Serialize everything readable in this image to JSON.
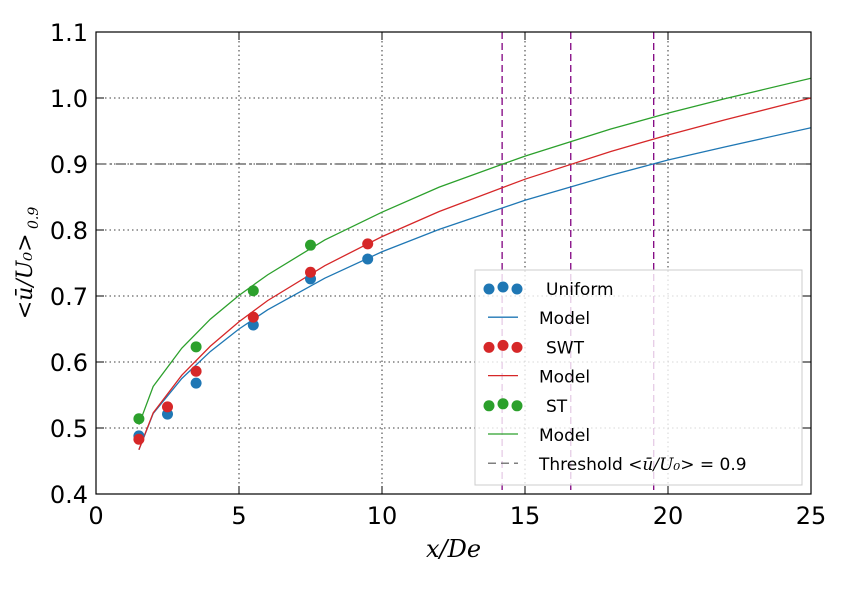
{
  "chart_data": {
    "type": "scatter",
    "title": "",
    "xlabel": "x/De",
    "ylabel": "<ū/U₀>",
    "ylabel_subscript": "0.9",
    "xlim": [
      0,
      25
    ],
    "ylim": [
      0.4,
      1.1
    ],
    "xticks": [
      "0",
      "5",
      "10",
      "15",
      "20",
      "25"
    ],
    "yticks": [
      "0.4",
      "0.5",
      "0.6",
      "0.7",
      "0.8",
      "0.9",
      "1.0",
      "1.1"
    ],
    "grid": true,
    "legend_placement": "lower-right",
    "series": [
      {
        "name": "Uniform",
        "kind": "points",
        "color": "#1f77b4",
        "x": [
          1.5,
          2.5,
          3.5,
          5.5,
          7.5,
          9.5
        ],
        "y": [
          0.488,
          0.521,
          0.568,
          0.656,
          0.726,
          0.756
        ]
      },
      {
        "name": "Model",
        "kind": "line",
        "color": "#1f77b4",
        "x": [
          1.5,
          2,
          3,
          4,
          5,
          6,
          8,
          10,
          12,
          15,
          18,
          20,
          22,
          25
        ],
        "y": [
          0.467,
          0.522,
          0.575,
          0.616,
          0.65,
          0.679,
          0.727,
          0.767,
          0.801,
          0.845,
          0.883,
          0.906,
          0.926,
          0.955
        ]
      },
      {
        "name": "SWT",
        "kind": "points",
        "color": "#d62728",
        "x": [
          1.5,
          2.5,
          3.5,
          5.5,
          7.5,
          9.5
        ],
        "y": [
          0.483,
          0.532,
          0.586,
          0.668,
          0.736,
          0.779
        ]
      },
      {
        "name": "Model",
        "kind": "line",
        "color": "#d62728",
        "x": [
          1.5,
          2,
          3,
          4,
          5,
          6,
          8,
          10,
          12,
          15,
          18,
          20,
          22,
          25
        ],
        "y": [
          0.467,
          0.523,
          0.58,
          0.624,
          0.661,
          0.693,
          0.746,
          0.79,
          0.828,
          0.877,
          0.919,
          0.944,
          0.967,
          1.0
        ]
      },
      {
        "name": "ST",
        "kind": "points",
        "color": "#2ca02c",
        "x": [
          1.5,
          3.5,
          5.5,
          7.5
        ],
        "y": [
          0.514,
          0.623,
          0.708,
          0.777
        ]
      },
      {
        "name": "Model",
        "kind": "line",
        "color": "#2ca02c",
        "x": [
          1.5,
          2,
          3,
          4,
          5,
          6,
          8,
          10,
          12,
          15,
          18,
          20,
          22,
          25
        ],
        "y": [
          0.505,
          0.563,
          0.621,
          0.665,
          0.701,
          0.732,
          0.785,
          0.827,
          0.865,
          0.912,
          0.953,
          0.977,
          0.999,
          1.03
        ]
      }
    ],
    "threshold": {
      "name": "Threshold",
      "label_math": "<ū/U₀>",
      "label_suffix": " = 0.9",
      "y": 0.9,
      "color": "#555555"
    },
    "crossings": {
      "color": "#800080",
      "x": [
        14.2,
        16.6,
        19.5
      ]
    }
  }
}
